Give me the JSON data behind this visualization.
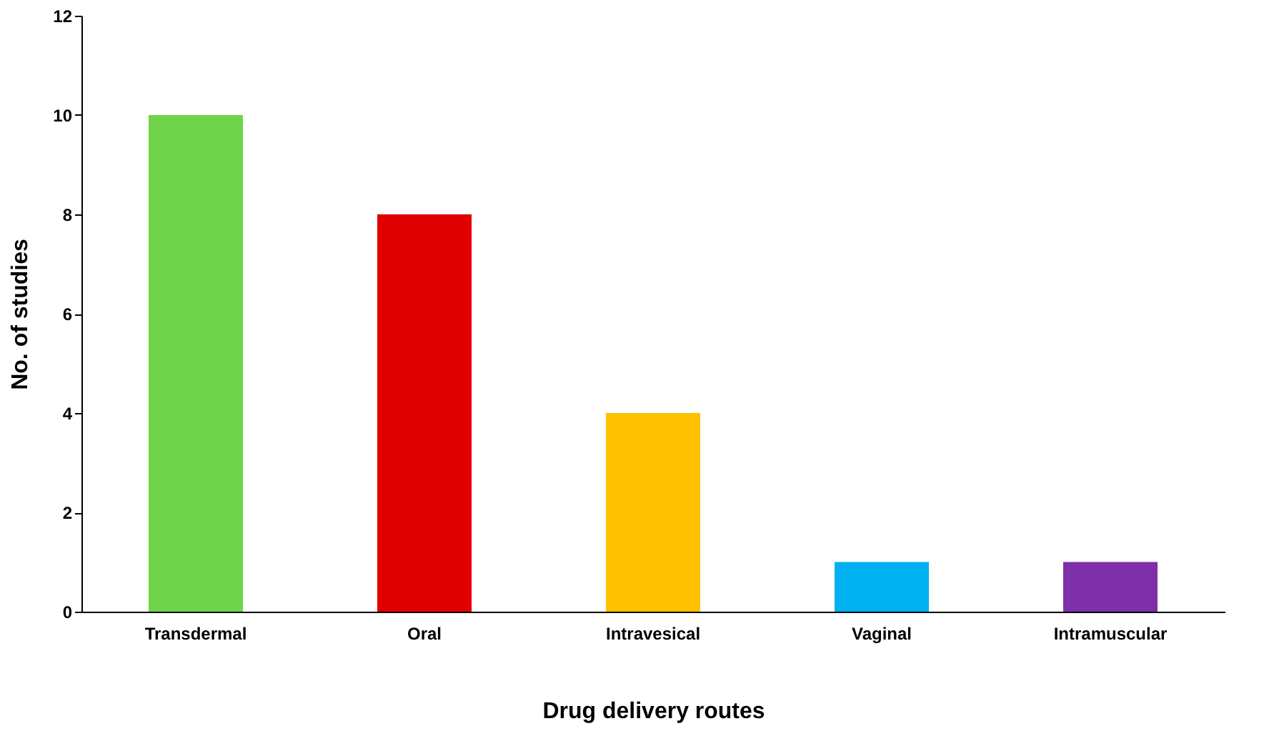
{
  "chart_data": {
    "type": "bar",
    "xlabel": "Drug delivery routes",
    "ylabel": "No. of studies",
    "categories": [
      "Transdermal",
      "Oral",
      "Intravesical",
      "Vaginal",
      "Intramuscular"
    ],
    "values": [
      10,
      8,
      4,
      1,
      1
    ],
    "colors": [
      "#6fd44a",
      "#e00000",
      "#ffc000",
      "#00b0f0",
      "#7f2fa8"
    ],
    "ylim": [
      0,
      12
    ],
    "yticks": [
      0,
      2,
      4,
      6,
      8,
      10,
      12
    ],
    "grid": false
  }
}
